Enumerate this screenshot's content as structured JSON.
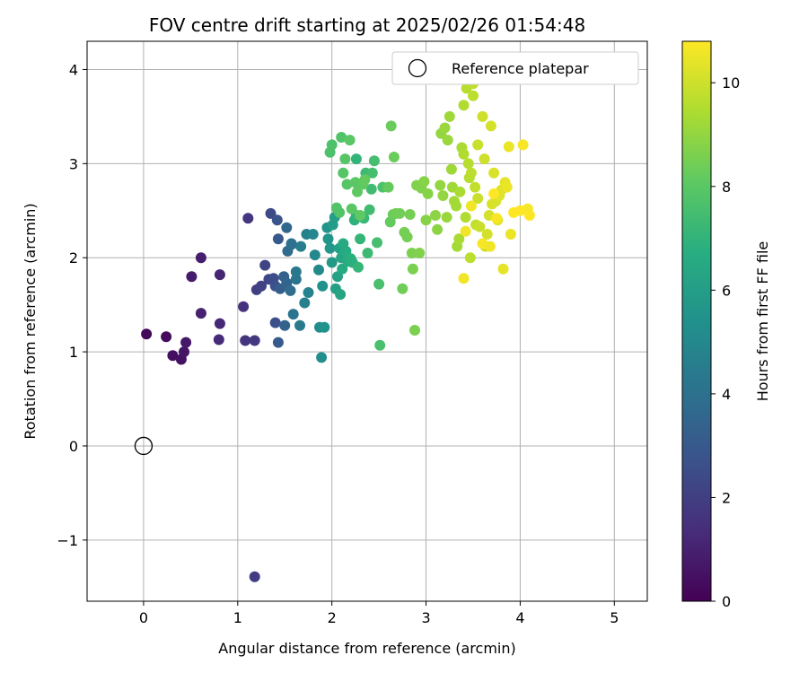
{
  "chart_data": {
    "type": "scatter",
    "title": "FOV centre drift starting at 2025/02/26 01:54:48",
    "xlabel": "Angular distance from reference (arcmin)",
    "ylabel": "Rotation from reference (arcmin)",
    "xlim": [
      -0.6,
      5.35
    ],
    "ylim": [
      -1.65,
      4.3
    ],
    "xticks": [
      0,
      1,
      2,
      3,
      4,
      5
    ],
    "yticks": [
      -1,
      0,
      1,
      2,
      3,
      4
    ],
    "xtick_labels": [
      "0",
      "1",
      "2",
      "3",
      "4",
      "5"
    ],
    "ytick_labels": [
      "−1",
      "0",
      "1",
      "2",
      "3",
      "4"
    ],
    "grid": true,
    "colormap": "viridis",
    "colorbar": {
      "label": "Hours from first FF file",
      "range": [
        0,
        10.8
      ],
      "ticks": [
        0,
        2,
        4,
        6,
        8,
        10
      ],
      "tick_labels": [
        "0",
        "2",
        "4",
        "6",
        "8",
        "10"
      ]
    },
    "legend": {
      "placement": "top-right",
      "entries": [
        "Reference platepar"
      ]
    },
    "reference": {
      "x": 0,
      "y": 0
    },
    "points": [
      [
        0.03,
        1.19,
        0.2
      ],
      [
        0.24,
        1.16,
        0.3
      ],
      [
        0.31,
        0.96,
        0.4
      ],
      [
        0.4,
        0.92,
        0.5
      ],
      [
        0.43,
        1.0,
        0.6
      ],
      [
        0.45,
        1.1,
        0.7
      ],
      [
        0.51,
        1.8,
        0.8
      ],
      [
        0.61,
        2.0,
        0.9
      ],
      [
        0.61,
        1.41,
        1.0
      ],
      [
        0.81,
        1.82,
        1.1
      ],
      [
        0.81,
        1.3,
        1.2
      ],
      [
        0.8,
        1.13,
        1.3
      ],
      [
        1.06,
        1.48,
        1.5
      ],
      [
        1.08,
        1.12,
        1.6
      ],
      [
        1.11,
        2.42,
        1.7
      ],
      [
        1.18,
        1.12,
        1.8
      ],
      [
        1.18,
        -1.39,
        1.9
      ],
      [
        1.2,
        1.66,
        2.0
      ],
      [
        1.25,
        1.7,
        2.1
      ],
      [
        1.29,
        1.92,
        2.2
      ],
      [
        1.33,
        1.77,
        2.3
      ],
      [
        1.35,
        2.47,
        2.4
      ],
      [
        1.38,
        1.78,
        2.5
      ],
      [
        1.4,
        1.31,
        2.6
      ],
      [
        1.4,
        1.7,
        2.7
      ],
      [
        1.42,
        2.4,
        2.8
      ],
      [
        1.43,
        2.2,
        3.0
      ],
      [
        1.43,
        1.1,
        3.1
      ],
      [
        1.45,
        1.67,
        3.2
      ],
      [
        1.49,
        1.8,
        3.3
      ],
      [
        1.5,
        1.28,
        3.4
      ],
      [
        1.52,
        1.73,
        3.5
      ],
      [
        1.52,
        2.32,
        3.6
      ],
      [
        1.53,
        2.07,
        3.7
      ],
      [
        1.56,
        1.65,
        3.8
      ],
      [
        1.57,
        2.15,
        3.9
      ],
      [
        1.57,
        2.14,
        4.0
      ],
      [
        1.59,
        1.4,
        4.1
      ],
      [
        1.62,
        1.77,
        4.2
      ],
      [
        1.62,
        1.85,
        4.3
      ],
      [
        1.66,
        1.28,
        4.4
      ],
      [
        1.67,
        2.12,
        4.5
      ],
      [
        1.71,
        1.52,
        4.6
      ],
      [
        1.73,
        2.25,
        4.7
      ],
      [
        1.75,
        1.63,
        4.8
      ],
      [
        1.8,
        2.25,
        4.9
      ],
      [
        1.82,
        2.03,
        5.0
      ],
      [
        1.86,
        1.87,
        5.1
      ],
      [
        1.87,
        1.26,
        5.2
      ],
      [
        1.89,
        0.94,
        5.3
      ],
      [
        1.9,
        1.7,
        5.4
      ],
      [
        1.92,
        1.26,
        5.5
      ],
      [
        1.95,
        2.32,
        5.6
      ],
      [
        1.96,
        2.2,
        5.6
      ],
      [
        1.98,
        2.1,
        5.7
      ],
      [
        2.0,
        1.95,
        5.8
      ],
      [
        2.01,
        2.35,
        5.9
      ],
      [
        2.03,
        2.43,
        6.0
      ],
      [
        2.04,
        1.67,
        6.1
      ],
      [
        2.06,
        1.8,
        6.2
      ],
      [
        2.08,
        2.1,
        6.2
      ],
      [
        2.09,
        1.61,
        6.3
      ],
      [
        2.1,
        2.0,
        6.4
      ],
      [
        2.11,
        1.88,
        6.5
      ],
      [
        2.12,
        2.15,
        6.5
      ],
      [
        2.15,
        2.07,
        6.6
      ],
      [
        2.17,
        1.96,
        6.7
      ],
      [
        2.2,
        1.99,
        6.8
      ],
      [
        2.22,
        1.95,
        6.8
      ],
      [
        2.24,
        2.4,
        6.9
      ],
      [
        2.26,
        2.45,
        7.0
      ],
      [
        2.26,
        3.05,
        7.0
      ],
      [
        2.28,
        1.9,
        7.1
      ],
      [
        2.3,
        2.2,
        7.1
      ],
      [
        2.32,
        2.44,
        7.2
      ],
      [
        2.34,
        2.42,
        7.2
      ],
      [
        2.36,
        2.9,
        7.3
      ],
      [
        2.38,
        2.05,
        7.3
      ],
      [
        2.4,
        2.51,
        7.4
      ],
      [
        2.42,
        2.73,
        7.4
      ],
      [
        2.43,
        2.9,
        7.5
      ],
      [
        2.45,
        3.03,
        7.5
      ],
      [
        2.48,
        2.16,
        7.5
      ],
      [
        2.5,
        1.72,
        7.6
      ],
      [
        2.51,
        1.07,
        7.6
      ],
      [
        2.54,
        2.75,
        7.7
      ],
      [
        1.98,
        3.12,
        7.7
      ],
      [
        2.0,
        3.2,
        7.7
      ],
      [
        2.05,
        2.53,
        7.8
      ],
      [
        2.08,
        2.48,
        7.8
      ],
      [
        2.1,
        3.28,
        7.8
      ],
      [
        2.12,
        2.9,
        7.9
      ],
      [
        2.14,
        3.05,
        7.9
      ],
      [
        2.16,
        2.78,
        7.9
      ],
      [
        2.19,
        3.25,
        8.0
      ],
      [
        2.21,
        2.52,
        8.0
      ],
      [
        2.25,
        2.8,
        8.0
      ],
      [
        2.27,
        2.7,
        8.1
      ],
      [
        2.3,
        2.45,
        8.1
      ],
      [
        2.33,
        2.78,
        8.1
      ],
      [
        2.35,
        2.83,
        8.2
      ],
      [
        2.6,
        2.75,
        8.2
      ],
      [
        2.62,
        2.38,
        8.2
      ],
      [
        2.63,
        3.4,
        8.3
      ],
      [
        2.65,
        2.46,
        8.3
      ],
      [
        2.66,
        3.07,
        8.3
      ],
      [
        2.68,
        2.47,
        8.4
      ],
      [
        2.72,
        2.47,
        8.4
      ],
      [
        2.75,
        1.67,
        8.4
      ],
      [
        2.77,
        2.27,
        8.5
      ],
      [
        2.8,
        2.22,
        8.5
      ],
      [
        2.83,
        2.46,
        8.5
      ],
      [
        2.85,
        2.05,
        8.6
      ],
      [
        2.86,
        1.88,
        8.6
      ],
      [
        2.88,
        1.23,
        8.6
      ],
      [
        2.9,
        2.77,
        8.7
      ],
      [
        2.93,
        2.05,
        8.7
      ],
      [
        2.95,
        2.74,
        8.7
      ],
      [
        2.98,
        2.81,
        8.8
      ],
      [
        3.0,
        2.4,
        8.8
      ],
      [
        3.02,
        2.68,
        8.8
      ],
      [
        3.1,
        2.45,
        8.9
      ],
      [
        3.12,
        2.3,
        8.9
      ],
      [
        3.15,
        2.77,
        9.0
      ],
      [
        3.16,
        3.32,
        9.0
      ],
      [
        3.18,
        2.66,
        9.0
      ],
      [
        3.2,
        3.38,
        9.1
      ],
      [
        3.22,
        2.43,
        9.1
      ],
      [
        3.23,
        3.25,
        9.1
      ],
      [
        3.25,
        3.5,
        9.2
      ],
      [
        3.27,
        2.94,
        9.2
      ],
      [
        3.28,
        2.75,
        9.2
      ],
      [
        3.3,
        2.6,
        9.3
      ],
      [
        3.32,
        2.55,
        9.3
      ],
      [
        3.33,
        2.12,
        9.3
      ],
      [
        3.35,
        2.2,
        9.4
      ],
      [
        3.36,
        2.7,
        9.4
      ],
      [
        3.38,
        3.17,
        9.4
      ],
      [
        3.4,
        3.1,
        9.5
      ],
      [
        3.4,
        3.62,
        9.5
      ],
      [
        3.42,
        2.43,
        9.5
      ],
      [
        3.43,
        3.8,
        9.6
      ],
      [
        3.45,
        3.0,
        9.6
      ],
      [
        3.46,
        2.85,
        9.6
      ],
      [
        3.47,
        2.0,
        9.7
      ],
      [
        3.48,
        2.9,
        9.7
      ],
      [
        3.5,
        3.72,
        9.7
      ],
      [
        3.5,
        3.85,
        9.8
      ],
      [
        3.52,
        2.75,
        9.8
      ],
      [
        3.53,
        2.35,
        9.8
      ],
      [
        3.55,
        2.63,
        9.9
      ],
      [
        3.55,
        3.2,
        9.9
      ],
      [
        3.57,
        2.33,
        9.9
      ],
      [
        3.6,
        3.5,
        10.0
      ],
      [
        3.62,
        3.05,
        10.0
      ],
      [
        3.63,
        2.12,
        10.0
      ],
      [
        3.65,
        2.25,
        10.1
      ],
      [
        3.67,
        2.45,
        10.1
      ],
      [
        3.69,
        3.4,
        10.1
      ],
      [
        3.7,
        2.57,
        10.2
      ],
      [
        3.72,
        2.9,
        10.2
      ],
      [
        3.74,
        2.6,
        10.2
      ],
      [
        3.76,
        2.4,
        10.3
      ],
      [
        3.78,
        2.66,
        10.3
      ],
      [
        3.8,
        2.72,
        10.3
      ],
      [
        3.82,
        1.88,
        10.4
      ],
      [
        3.84,
        2.8,
        10.4
      ],
      [
        3.86,
        2.75,
        10.5
      ],
      [
        3.88,
        3.18,
        10.5
      ],
      [
        3.9,
        2.25,
        10.5
      ],
      [
        3.4,
        1.78,
        10.6
      ],
      [
        3.42,
        2.28,
        10.6
      ],
      [
        3.48,
        2.55,
        10.6
      ],
      [
        3.6,
        2.15,
        10.7
      ],
      [
        4.03,
        3.2,
        10.7
      ],
      [
        4.08,
        2.52,
        10.7
      ],
      [
        4.1,
        2.45,
        10.8
      ],
      [
        4.0,
        2.5,
        10.8
      ],
      [
        3.93,
        2.48,
        10.8
      ],
      [
        3.72,
        2.68,
        10.8
      ],
      [
        3.75,
        2.42,
        10.7
      ],
      [
        3.68,
        2.12,
        10.6
      ]
    ]
  }
}
